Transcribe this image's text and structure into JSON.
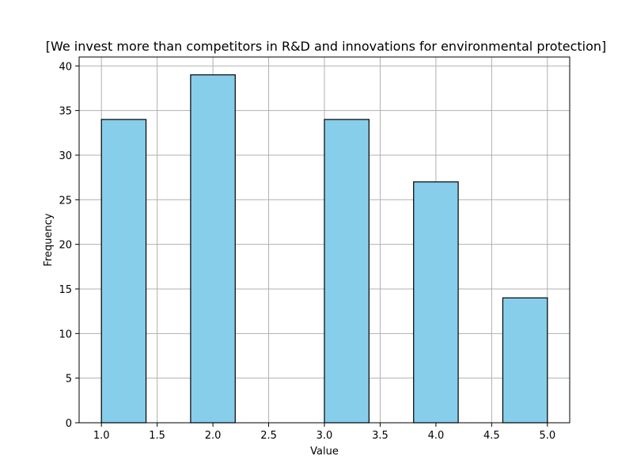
{
  "chart_data": {
    "type": "bar",
    "title": "[We invest more than competitors in R&D and innovations for environmental protection]",
    "xlabel": "Value",
    "ylabel": "Frequency",
    "xlim": [
      0.8,
      5.2
    ],
    "ylim": [
      0,
      41
    ],
    "grid": true,
    "bins": [
      {
        "start": 1.0,
        "end": 1.4,
        "count": 34
      },
      {
        "start": 1.8,
        "end": 2.2,
        "count": 39
      },
      {
        "start": 3.0,
        "end": 3.4,
        "count": 34
      },
      {
        "start": 3.8,
        "end": 4.2,
        "count": 27
      },
      {
        "start": 4.6,
        "end": 5.0,
        "count": 14
      }
    ],
    "x_ticks": [
      1.0,
      1.5,
      2.0,
      2.5,
      3.0,
      3.5,
      4.0,
      4.5,
      5.0
    ],
    "x_tick_labels": [
      "1.0",
      "1.5",
      "2.0",
      "2.5",
      "3.0",
      "3.5",
      "4.0",
      "4.5",
      "5.0"
    ],
    "y_ticks": [
      0,
      5,
      10,
      15,
      20,
      25,
      30,
      35,
      40
    ],
    "y_tick_labels": [
      "0",
      "5",
      "10",
      "15",
      "20",
      "25",
      "30",
      "35",
      "40"
    ],
    "colors": {
      "bar_fill": "#87ceeb",
      "bar_edge": "#000000",
      "grid": "#b0b0b0"
    }
  }
}
